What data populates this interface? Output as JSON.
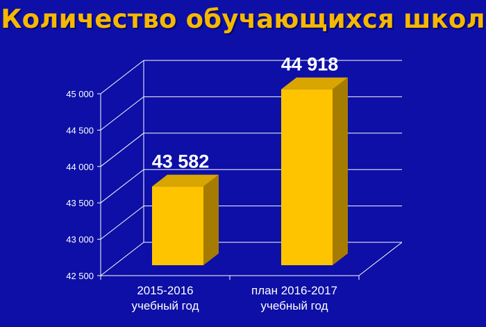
{
  "chart_data": {
    "type": "bar",
    "title": "Количество обучающихся школ",
    "categories": [
      [
        "2015-2016",
        "учебный год"
      ],
      [
        "план 2016-2017",
        "учебный год"
      ]
    ],
    "values": [
      43582,
      44918
    ],
    "data_labels": [
      "43 582",
      "44 918"
    ],
    "yticks": [
      {
        "value": 42500,
        "label": "42 500"
      },
      {
        "value": 43000,
        "label": "43 000"
      },
      {
        "value": 43500,
        "label": "43 500"
      },
      {
        "value": 44000,
        "label": "44 000"
      },
      {
        "value": 44500,
        "label": "44 500"
      },
      {
        "value": 45000,
        "label": "45 000"
      }
    ],
    "ylim": [
      42500,
      45000
    ],
    "grid": true,
    "style": "3d",
    "colors": {
      "background": "#0d0fa6",
      "title": "#f5b800",
      "bar_front": "#ffc400",
      "bar_top": "#d9a500",
      "bar_side": "#a67c00",
      "grid": "#ffffff"
    }
  }
}
